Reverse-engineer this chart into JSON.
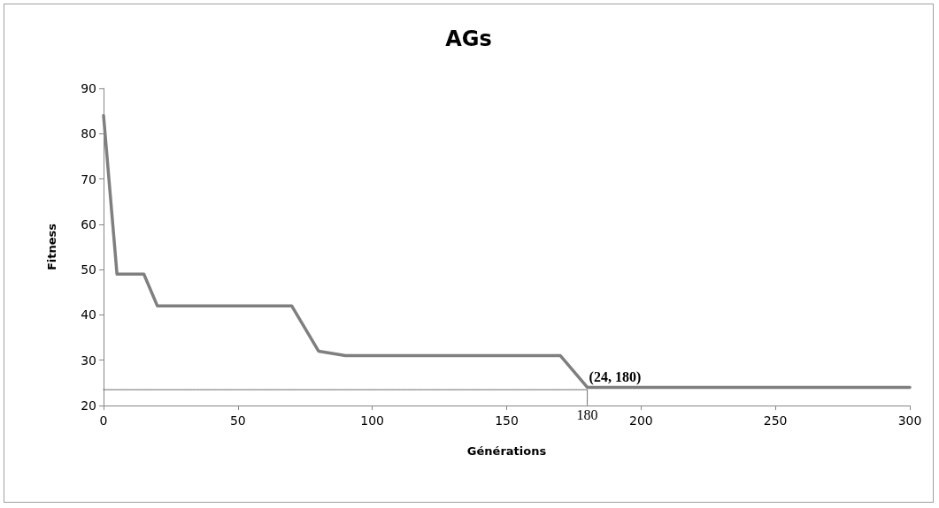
{
  "chart_data": {
    "type": "line",
    "title": "AGs",
    "xlabel": "Générations",
    "ylabel": "Fitness",
    "xlim": [
      0,
      300
    ],
    "xticks": [
      0,
      50,
      100,
      150,
      200,
      250,
      300
    ],
    "ylim": [
      20,
      90
    ],
    "yticks": [
      20,
      30,
      40,
      50,
      60,
      70,
      80,
      90
    ],
    "grid": false,
    "marker": "none",
    "series": [
      {
        "color": "#7f7f7f",
        "line_style": "solid",
        "x": [
          0,
          5,
          15,
          20,
          70,
          80,
          90,
          170,
          180,
          300
        ],
        "values": [
          84,
          49,
          49,
          42,
          42,
          32,
          31,
          31,
          24,
          24
        ]
      },
      {
        "color": "#404040",
        "line_style": "dotted",
        "x": [
          0,
          180,
          180
        ],
        "values": [
          23.5,
          23.5,
          20
        ]
      }
    ],
    "annotations": [
      {
        "text": "(24, 180)",
        "x": 180,
        "y": 24
      },
      {
        "text": "180",
        "x": 180,
        "y": 20
      }
    ]
  }
}
